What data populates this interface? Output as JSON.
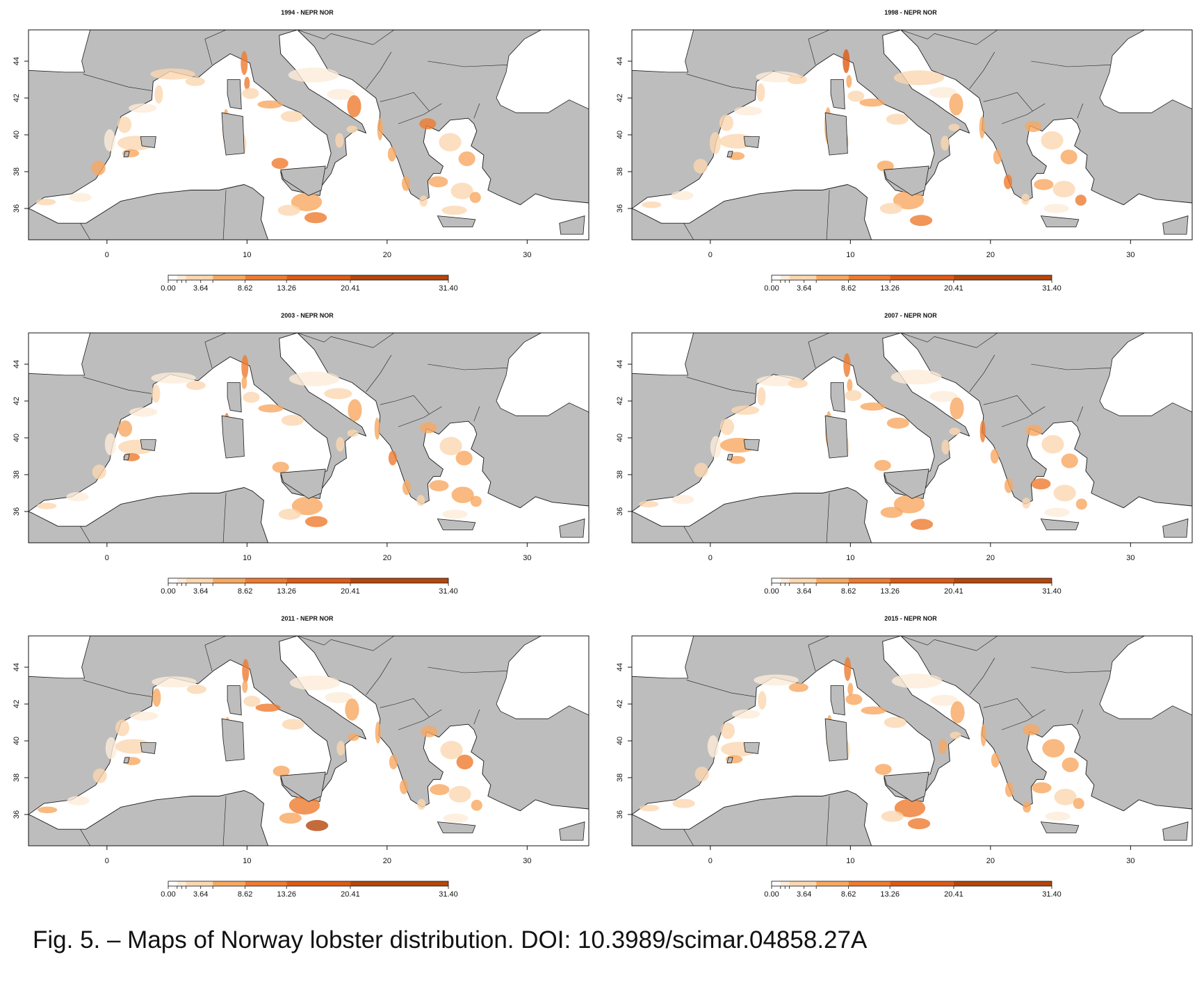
{
  "figure": {
    "caption": "Fig. 5. – Maps of Norway lobster distribution. DOI: 10.3989/scimar.04858.27A",
    "colors": {
      "land": "#bdbdbd",
      "sea": "#ffffff",
      "coastline": "#1a1a1a",
      "scale": [
        "#ffffff",
        "#fdecd9",
        "#fbd7b0",
        "#f7a860",
        "#ee7b30",
        "#dd5a14",
        "#b5460c"
      ]
    },
    "legend": {
      "breaks": [
        0.0,
        1.0,
        1.5,
        2.0,
        3.64,
        5.0,
        8.62,
        13.26,
        20.41,
        31.4
      ],
      "labels": [
        "0.00",
        "3.64",
        "8.62",
        "13.26",
        "20.41",
        "31.40"
      ]
    },
    "axes": {
      "x_ticks": [
        "0",
        "10",
        "20",
        "30"
      ],
      "y_ticks": [
        "36",
        "38",
        "40",
        "42",
        "44"
      ]
    },
    "panels": [
      {
        "title": "1994 - NEPR NOR"
      },
      {
        "title": "1998 - NEPR NOR"
      },
      {
        "title": "2003 - NEPR NOR"
      },
      {
        "title": "2007 - NEPR NOR"
      },
      {
        "title": "2011 - NEPR NOR"
      },
      {
        "title": "2015 - NEPR NOR"
      }
    ]
  }
}
